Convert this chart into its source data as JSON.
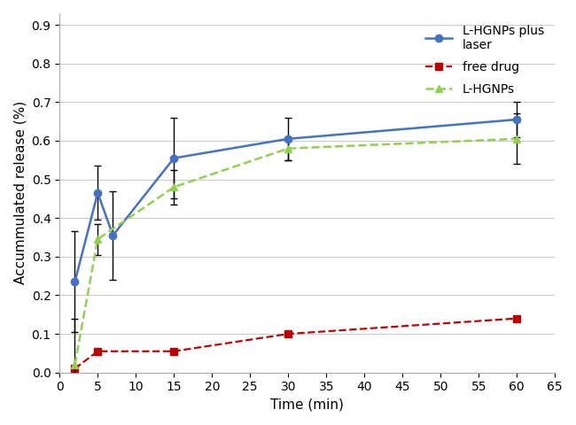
{
  "title": "",
  "xlabel": "Time (min)",
  "ylabel": "Accummulated release (%)",
  "xlim": [
    0,
    65
  ],
  "ylim": [
    0,
    0.93
  ],
  "xticks": [
    0,
    5,
    10,
    15,
    20,
    25,
    30,
    35,
    40,
    45,
    50,
    55,
    60,
    65
  ],
  "yticks": [
    0.0,
    0.1,
    0.2,
    0.3,
    0.4,
    0.5,
    0.6,
    0.7,
    0.8,
    0.9
  ],
  "series": [
    {
      "label": "L-HGNPs plus\nlaser",
      "x": [
        2,
        5,
        7,
        15,
        30,
        60
      ],
      "y": [
        0.235,
        0.465,
        0.355,
        0.555,
        0.605,
        0.655
      ],
      "yerr": [
        0.13,
        0.07,
        0.115,
        0.105,
        0.055,
        0.045
      ],
      "color": "#4472C4",
      "linestyle": "-",
      "marker": "o",
      "markersize": 6,
      "linewidth": 1.8,
      "zorder": 3
    },
    {
      "label": "free drug",
      "x": [
        2,
        5,
        15,
        30,
        60
      ],
      "y": [
        0.01,
        0.055,
        0.055,
        0.1,
        0.14
      ],
      "yerr": null,
      "color": "#C00000",
      "linestyle": "--",
      "marker": "s",
      "markersize": 6,
      "linewidth": 1.6,
      "zorder": 3
    },
    {
      "label": "L-HGNPs",
      "x": [
        2,
        5,
        15,
        30,
        60
      ],
      "y": [
        0.02,
        0.345,
        0.48,
        0.58,
        0.605
      ],
      "yerr": [
        0.12,
        0.04,
        0.045,
        0.03,
        0.065
      ],
      "color": "#92D050",
      "linestyle": "--",
      "marker": "^",
      "markersize": 6,
      "linewidth": 1.8,
      "zorder": 3
    }
  ],
  "background_color": "#FFFFFF",
  "grid_color": "#C8C8C8",
  "ecolor": "#000000",
  "tick_fontsize": 10,
  "label_fontsize": 11
}
